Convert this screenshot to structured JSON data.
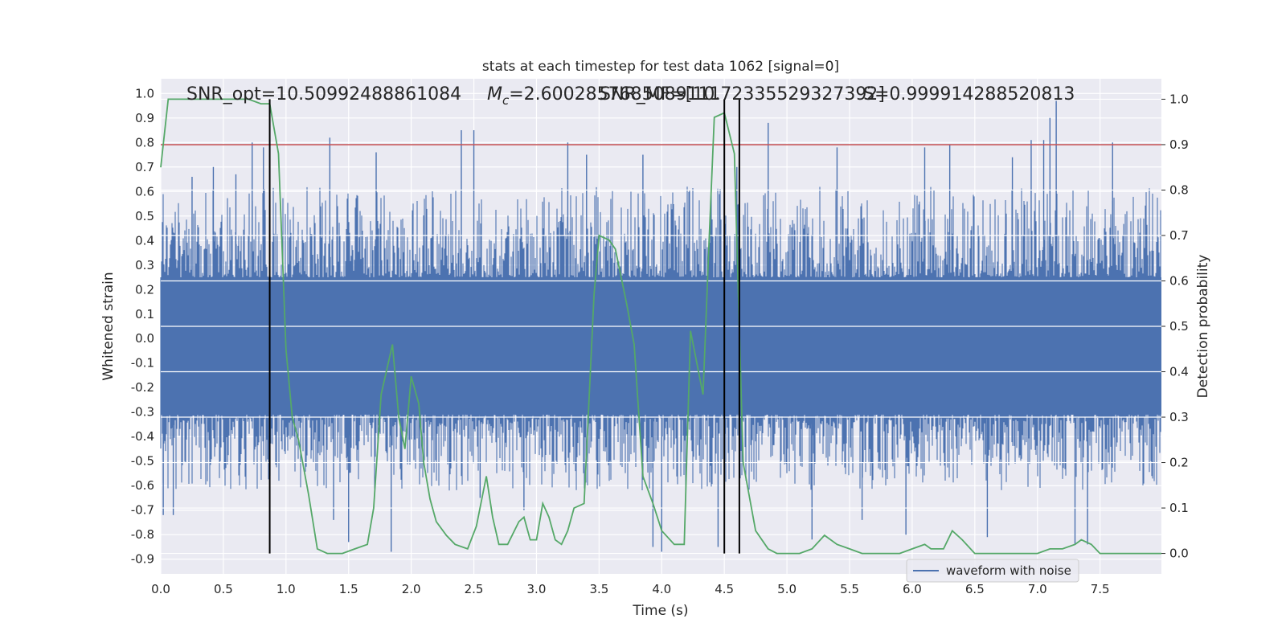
{
  "chart_data": {
    "type": "line",
    "title": "stats at each timestep for test data 1062 [signal=0]",
    "xlabel": "Time (s)",
    "ylabel": "Whitened strain",
    "y2label": "Detection probability",
    "xlim": [
      0.0,
      7.99
    ],
    "ylim": [
      -0.96,
      1.06
    ],
    "y2lim": [
      -0.045,
      1.045
    ],
    "xticks": [
      "0.0",
      "0.5",
      "1.0",
      "1.5",
      "2.0",
      "2.5",
      "3.0",
      "3.5",
      "4.0",
      "4.5",
      "5.0",
      "5.5",
      "6.0",
      "6.5",
      "7.0",
      "7.5"
    ],
    "yticks": [
      "1.0",
      "0.9",
      "0.8",
      "0.7",
      "0.6",
      "0.5",
      "0.4",
      "0.3",
      "0.2",
      "0.1",
      "0.0",
      "-0.1",
      "-0.2",
      "-0.3",
      "-0.4",
      "-0.5",
      "-0.6",
      "-0.7",
      "-0.8",
      "-0.9"
    ],
    "y2ticks": [
      "1.0",
      "0.9",
      "0.8",
      "0.7",
      "0.6",
      "0.5",
      "0.4",
      "0.3",
      "0.2",
      "0.1",
      "0.0"
    ],
    "grid": true,
    "legend_position": "lower-right",
    "annotations": [
      "SNR_opt=10.50992488861084",
      "Mc=2.6002857685089111",
      "SNR_MF=[10.72335529327392]",
      "S=0.999914288520813"
    ],
    "threshold": {
      "y2": 0.9,
      "color": "#c44e52"
    },
    "vertical_lines_x": [
      0.87,
      4.5,
      4.62
    ],
    "series": [
      {
        "name": "waveform with noise",
        "color": "#4c72b0",
        "axis": "left",
        "kind": "noise",
        "band": [
          -0.31,
          0.25
        ],
        "typical_peak": [
          -0.62,
          0.62
        ],
        "spikes": [
          [
            0.02,
            -0.72
          ],
          [
            0.1,
            -0.72
          ],
          [
            0.25,
            0.66
          ],
          [
            0.42,
            0.7
          ],
          [
            0.6,
            0.67
          ],
          [
            0.73,
            0.8
          ],
          [
            0.82,
            0.78
          ],
          [
            0.87,
            -0.63
          ],
          [
            1.35,
            0.82
          ],
          [
            1.38,
            -0.74
          ],
          [
            1.5,
            -0.83
          ],
          [
            1.72,
            0.76
          ],
          [
            1.84,
            -0.87
          ],
          [
            2.4,
            0.85
          ],
          [
            2.5,
            0.85
          ],
          [
            2.55,
            -0.65
          ],
          [
            2.9,
            -0.7
          ],
          [
            3.25,
            0.8
          ],
          [
            3.4,
            0.75
          ],
          [
            3.85,
            0.75
          ],
          [
            3.93,
            -0.85
          ],
          [
            4.0,
            -0.87
          ],
          [
            4.45,
            -0.85
          ],
          [
            4.6,
            0.7
          ],
          [
            4.85,
            0.88
          ],
          [
            5.2,
            -0.82
          ],
          [
            5.4,
            0.78
          ],
          [
            5.6,
            -0.74
          ],
          [
            5.95,
            -0.8
          ],
          [
            6.1,
            0.78
          ],
          [
            6.3,
            0.79
          ],
          [
            6.6,
            -0.81
          ],
          [
            6.8,
            0.74
          ],
          [
            6.95,
            0.81
          ],
          [
            7.05,
            0.81
          ],
          [
            7.1,
            0.9
          ],
          [
            7.15,
            0.97
          ],
          [
            7.3,
            -0.84
          ],
          [
            7.4,
            -0.84
          ],
          [
            7.6,
            0.8
          ]
        ]
      },
      {
        "name": "",
        "color": "#55a868",
        "axis": "right",
        "kind": "line",
        "x": [
          0.0,
          0.06,
          0.15,
          0.3,
          0.5,
          0.6,
          0.7,
          0.8,
          0.87,
          0.94,
          1.0,
          1.05,
          1.1,
          1.18,
          1.25,
          1.33,
          1.45,
          1.55,
          1.65,
          1.7,
          1.76,
          1.85,
          1.9,
          1.95,
          2.0,
          2.06,
          2.1,
          2.15,
          2.2,
          2.28,
          2.35,
          2.45,
          2.52,
          2.6,
          2.65,
          2.7,
          2.77,
          2.86,
          2.9,
          2.95,
          3.0,
          3.05,
          3.1,
          3.15,
          3.2,
          3.25,
          3.3,
          3.38,
          3.46,
          3.5,
          3.58,
          3.63,
          3.72,
          3.78,
          3.85,
          3.93,
          4.0,
          4.1,
          4.18,
          4.23,
          4.33,
          4.38,
          4.42,
          4.5,
          4.58,
          4.65,
          4.75,
          4.85,
          4.92,
          5.0,
          5.1,
          5.2,
          5.3,
          5.4,
          5.5,
          5.6,
          5.7,
          5.8,
          5.9,
          6.0,
          6.1,
          6.15,
          6.25,
          6.32,
          6.4,
          6.5,
          6.6,
          6.7,
          6.8,
          6.9,
          7.0,
          7.1,
          7.2,
          7.3,
          7.35,
          7.43,
          7.5,
          7.6,
          7.7,
          7.8,
          7.99
        ],
        "values": [
          0.85,
          1.0,
          1.0,
          1.0,
          1.0,
          1.0,
          1.0,
          0.99,
          0.99,
          0.88,
          0.45,
          0.3,
          0.25,
          0.13,
          0.01,
          0.0,
          0.0,
          0.01,
          0.02,
          0.1,
          0.35,
          0.46,
          0.3,
          0.23,
          0.39,
          0.33,
          0.2,
          0.12,
          0.07,
          0.04,
          0.02,
          0.01,
          0.06,
          0.17,
          0.08,
          0.02,
          0.02,
          0.07,
          0.08,
          0.03,
          0.03,
          0.11,
          0.08,
          0.03,
          0.02,
          0.05,
          0.1,
          0.11,
          0.57,
          0.7,
          0.69,
          0.67,
          0.55,
          0.46,
          0.17,
          0.11,
          0.05,
          0.02,
          0.02,
          0.49,
          0.35,
          0.7,
          0.96,
          0.97,
          0.88,
          0.2,
          0.05,
          0.01,
          0.0,
          0.0,
          0.0,
          0.01,
          0.04,
          0.02,
          0.01,
          0.0,
          0.0,
          0.0,
          0.0,
          0.01,
          0.02,
          0.01,
          0.01,
          0.05,
          0.03,
          0.0,
          0.0,
          0.0,
          0.0,
          0.0,
          0.0,
          0.01,
          0.01,
          0.02,
          0.03,
          0.02,
          0.0,
          0.0,
          0.0,
          0.0,
          0.0
        ]
      }
    ]
  }
}
